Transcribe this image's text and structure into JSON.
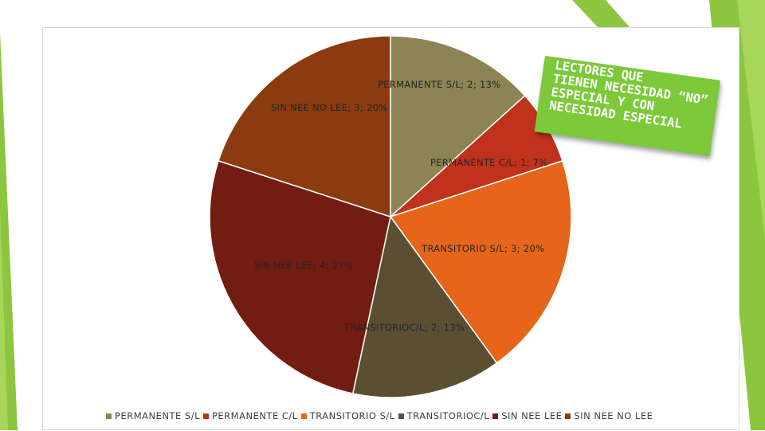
{
  "callout": {
    "lines": [
      "LECTORES QUE",
      "TIENEN NECESIDAD",
      "ESPECIAL Y CON",
      "NECESIDAD ESPECIAL"
    ],
    "quote_text": "“NO”"
  },
  "colors": {
    "accent_green": "#8cc63f",
    "callout_green": "#7cc93a"
  },
  "chart_data": {
    "type": "pie",
    "title": "",
    "categories": [
      "PERMANENTE S/L",
      "PERMANENTE C/L",
      "TRANSITORIO S/L",
      "TRANSITORIOC/L",
      "SIN NEE  LEE",
      "SIN NEE NO LEE"
    ],
    "values": [
      2,
      1,
      3,
      2,
      4,
      3
    ],
    "percent_labels": [
      "13%",
      "7%",
      "20%",
      "13%",
      "27%",
      "20%"
    ],
    "colors": [
      "#8c8454",
      "#c0321c",
      "#e6651a",
      "#5a4f33",
      "#731c12",
      "#8b3b0f"
    ],
    "data_labels": [
      "PERMANENTE S/L; 2; 13%",
      "PERMANENTE C/L; 1; 7%",
      "TRANSITORIO S/L; 3; 20%",
      "TRANSITORIOC/L; 2; 13%",
      "SIN NEE  LEE; 4; 27%",
      "SIN NEE NO LEE; 3; 20%"
    ],
    "legend_position": "bottom"
  }
}
